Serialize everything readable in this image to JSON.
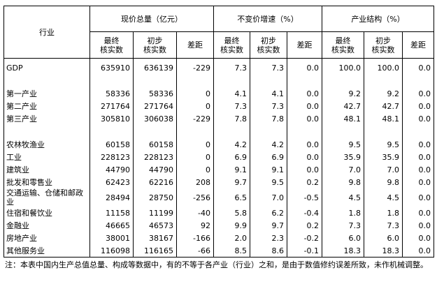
{
  "table": {
    "header": {
      "industry": "行业",
      "groups": [
        {
          "title": "现价总量（亿元）",
          "columns": [
            [
              "最终",
              "核实数"
            ],
            [
              "初步",
              "核实数"
            ],
            [
              "差距"
            ]
          ]
        },
        {
          "title": "不变价增速（%）",
          "columns": [
            [
              "最终",
              "核实数"
            ],
            [
              "初步",
              "核实数"
            ],
            [
              "差距"
            ]
          ]
        },
        {
          "title": "产业结构（%）",
          "columns": [
            [
              "最终",
              "核实数"
            ],
            [
              "初步",
              "核实数"
            ],
            [
              "差距"
            ]
          ]
        }
      ]
    },
    "sections": [
      [
        [
          "GDP",
          "635910",
          "636139",
          "-229",
          "7.3",
          "7.3",
          "0.0",
          "100.0",
          "100.0",
          "0.0"
        ]
      ],
      [
        [
          "第一产业",
          "58336",
          "58336",
          "0",
          "4.1",
          "4.1",
          "0.0",
          "9.2",
          "9.2",
          "0.0"
        ],
        [
          "第二产业",
          "271764",
          "271764",
          "0",
          "7.3",
          "7.3",
          "0.0",
          "42.7",
          "42.7",
          "0.0"
        ],
        [
          "第三产业",
          "305810",
          "306038",
          "-229",
          "7.8",
          "7.8",
          "0.0",
          "48.1",
          "48.1",
          "0.0"
        ]
      ],
      [
        [
          "农林牧渔业",
          "60158",
          "60158",
          "0",
          "4.2",
          "4.2",
          "0.0",
          "9.5",
          "9.5",
          "0.0"
        ],
        [
          "工业",
          "228123",
          "228123",
          "0",
          "6.9",
          "6.9",
          "0.0",
          "35.9",
          "35.9",
          "0.0"
        ],
        [
          "建筑业",
          "44790",
          "44790",
          "0",
          "9.1",
          "9.1",
          "0.0",
          "7.0",
          "7.0",
          "0.0"
        ],
        [
          "批发和零售业",
          "62423",
          "62216",
          "208",
          "9.7",
          "9.5",
          "0.2",
          "9.8",
          "9.8",
          "0.0"
        ],
        [
          "交通运输、仓储和邮政业",
          "28494",
          "28750",
          "-256",
          "6.5",
          "7.0",
          "-0.5",
          "4.5",
          "4.5",
          "0.0"
        ],
        [
          "住宿和餐饮业",
          "11158",
          "11199",
          "-40",
          "5.8",
          "6.2",
          "-0.4",
          "1.8",
          "1.8",
          "0.0"
        ],
        [
          "金融业",
          "46665",
          "46573",
          "92",
          "9.9",
          "9.7",
          "0.2",
          "7.3",
          "7.3",
          "0.0"
        ],
        [
          "房地产业",
          "38001",
          "38167",
          "-166",
          "2.0",
          "2.3",
          "-0.2",
          "6.0",
          "6.0",
          "0.0"
        ],
        [
          "其他服务业",
          "116098",
          "116165",
          "-66",
          "8.5",
          "8.6",
          "-0.1",
          "18.3",
          "18.3",
          "0.0"
        ]
      ]
    ],
    "note": "注：本表中国内生产总值总量、构成等数据中，有的不等于各产业（行业）之和，是由于数值修约误差所致，未作机械调整。"
  }
}
